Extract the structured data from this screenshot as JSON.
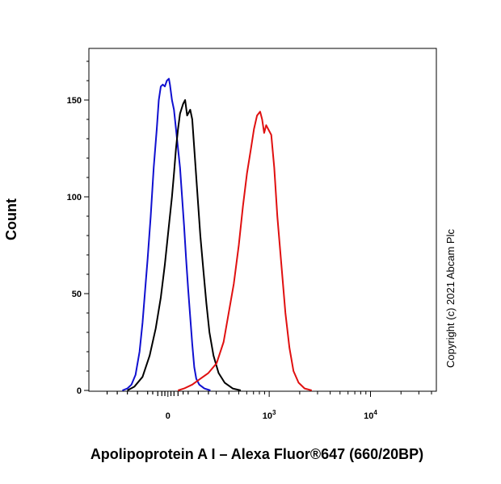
{
  "chart_data": {
    "type": "line",
    "title": "",
    "xlabel": "Apolipoprotein A I – Alexa Fluor®647 (660/20BP)",
    "ylabel": "Count",
    "x_scale": "biexponential",
    "xlim_display": [
      -0.78,
      2.65
    ],
    "ylim": [
      0,
      180
    ],
    "y_ticks": [
      0,
      50,
      100,
      150
    ],
    "x_ticks": [
      {
        "pos": 0.0,
        "base": "0",
        "exp": ""
      },
      {
        "pos": 1.0,
        "base": "10",
        "exp": "3"
      },
      {
        "pos": 2.0,
        "base": "10",
        "exp": "4"
      }
    ],
    "grid": false,
    "legend": "none",
    "annotation": "Copyright (c) 2021 Abcam Plc",
    "series": [
      {
        "color": "#1010d0",
        "points": [
          [
            -0.45,
            0
          ],
          [
            -0.4,
            1
          ],
          [
            -0.36,
            3
          ],
          [
            -0.32,
            8
          ],
          [
            -0.28,
            20
          ],
          [
            -0.25,
            35
          ],
          [
            -0.22,
            55
          ],
          [
            -0.2,
            68
          ],
          [
            -0.17,
            90
          ],
          [
            -0.14,
            115
          ],
          [
            -0.11,
            135
          ],
          [
            -0.09,
            150
          ],
          [
            -0.07,
            157
          ],
          [
            -0.05,
            158
          ],
          [
            -0.03,
            157
          ],
          [
            -0.01,
            160
          ],
          [
            0.01,
            161
          ],
          [
            0.02,
            158
          ],
          [
            0.04,
            150
          ],
          [
            0.06,
            145
          ],
          [
            0.08,
            135
          ],
          [
            0.1,
            125
          ],
          [
            0.12,
            115
          ],
          [
            0.14,
            100
          ],
          [
            0.16,
            85
          ],
          [
            0.18,
            68
          ],
          [
            0.2,
            52
          ],
          [
            0.22,
            38
          ],
          [
            0.24,
            24
          ],
          [
            0.26,
            12
          ],
          [
            0.28,
            6
          ],
          [
            0.31,
            3
          ],
          [
            0.36,
            1
          ],
          [
            0.42,
            0
          ]
        ]
      },
      {
        "color": "#000000",
        "points": [
          [
            -0.4,
            0
          ],
          [
            -0.33,
            2
          ],
          [
            -0.25,
            7
          ],
          [
            -0.18,
            18
          ],
          [
            -0.12,
            32
          ],
          [
            -0.07,
            48
          ],
          [
            -0.03,
            65
          ],
          [
            0.01,
            85
          ],
          [
            0.04,
            100
          ],
          [
            0.06,
            112
          ],
          [
            0.08,
            125
          ],
          [
            0.1,
            135
          ],
          [
            0.12,
            143
          ],
          [
            0.15,
            148
          ],
          [
            0.17,
            150
          ],
          [
            0.19,
            142
          ],
          [
            0.22,
            145
          ],
          [
            0.24,
            140
          ],
          [
            0.26,
            125
          ],
          [
            0.28,
            110
          ],
          [
            0.3,
            95
          ],
          [
            0.32,
            80
          ],
          [
            0.35,
            62
          ],
          [
            0.38,
            45
          ],
          [
            0.41,
            30
          ],
          [
            0.45,
            18
          ],
          [
            0.5,
            9
          ],
          [
            0.56,
            4
          ],
          [
            0.64,
            1
          ],
          [
            0.72,
            0
          ]
        ]
      },
      {
        "color": "#e01010",
        "points": [
          [
            0.1,
            0
          ],
          [
            0.16,
            1
          ],
          [
            0.24,
            3
          ],
          [
            0.32,
            6
          ],
          [
            0.4,
            9
          ],
          [
            0.48,
            14
          ],
          [
            0.55,
            25
          ],
          [
            0.6,
            40
          ],
          [
            0.65,
            55
          ],
          [
            0.7,
            75
          ],
          [
            0.74,
            95
          ],
          [
            0.78,
            112
          ],
          [
            0.82,
            125
          ],
          [
            0.85,
            135
          ],
          [
            0.88,
            142
          ],
          [
            0.91,
            144
          ],
          [
            0.93,
            140
          ],
          [
            0.95,
            133
          ],
          [
            0.97,
            137
          ],
          [
            0.99,
            135
          ],
          [
            1.02,
            132
          ],
          [
            1.05,
            115
          ],
          [
            1.08,
            90
          ],
          [
            1.12,
            65
          ],
          [
            1.16,
            40
          ],
          [
            1.2,
            22
          ],
          [
            1.24,
            10
          ],
          [
            1.29,
            4
          ],
          [
            1.35,
            1
          ],
          [
            1.42,
            0
          ]
        ]
      }
    ]
  }
}
